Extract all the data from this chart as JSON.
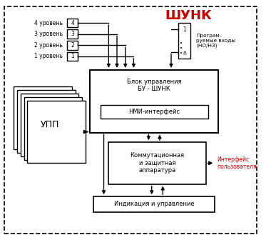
{
  "title": "ШУНК",
  "title_color": "#cc0000",
  "bg_color": "#ffffff",
  "fig_width": 3.73,
  "fig_height": 3.36,
  "levels": [
    "4 уровень",
    "3 уровень",
    "2 уровень",
    "1 уровень"
  ],
  "level_numbers": [
    "4",
    "3",
    "2",
    "1"
  ],
  "usp_label": "УПП",
  "bu_label": "Блок управления\nБУ - ШУНК",
  "hmi_label": "НМИ-интерфейс",
  "comm_label": "Коммутационная\nи защитная\nаппаратура",
  "ind_label": "Индикация и управление",
  "prog_label": "Програм-\nруемые входы\n(НО/НЗ)",
  "interf_label": "Интерфейс\nпользователя",
  "prog_numbers": [
    "1",
    "n"
  ]
}
